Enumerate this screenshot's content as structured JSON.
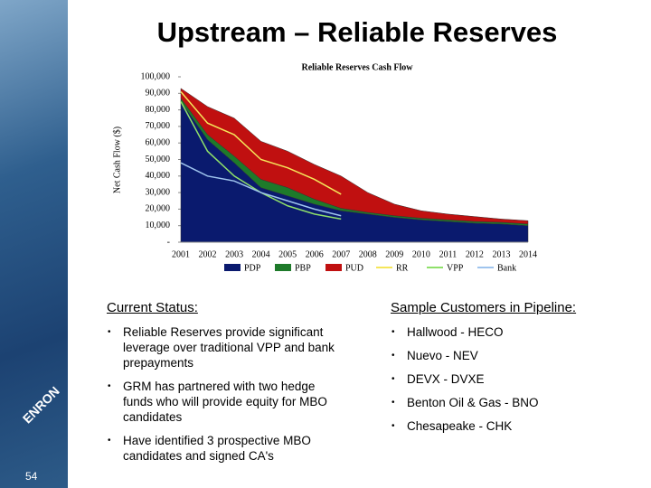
{
  "slide": {
    "title": "Upstream – Reliable Reserves",
    "page_number": "54",
    "logo": "ENRON"
  },
  "chart_data": {
    "type": "area",
    "title": "Reliable Reserves Cash Flow",
    "y_label": "Net Cash Flow ($)",
    "categories": [
      "2001",
      "2002",
      "2003",
      "2004",
      "2005",
      "2006",
      "2007",
      "2008",
      "2009",
      "2010",
      "2011",
      "2012",
      "2013",
      "2014"
    ],
    "ylim": [
      0,
      100000
    ],
    "yticks": [
      {
        "value": 0,
        "label": "-"
      },
      {
        "value": 10000,
        "label": "10,000"
      },
      {
        "value": 20000,
        "label": "20,000"
      },
      {
        "value": 30000,
        "label": "30,000"
      },
      {
        "value": 40000,
        "label": "40,000"
      },
      {
        "value": 50000,
        "label": "50,000"
      },
      {
        "value": 60000,
        "label": "60,000"
      },
      {
        "value": 70000,
        "label": "70,000"
      },
      {
        "value": 80000,
        "label": "80,000"
      },
      {
        "value": 90000,
        "label": "90,000"
      },
      {
        "value": 100000,
        "label": "100,000"
      }
    ],
    "series": [
      {
        "name": "PDP",
        "color": "#0a1a6e",
        "style": "area",
        "values": [
          85000,
          62000,
          48000,
          33000,
          28000,
          23000,
          19000,
          17000,
          15000,
          13500,
          12500,
          11500,
          11000,
          10000
        ]
      },
      {
        "name": "PBP",
        "color": "#1e7a2a",
        "style": "area",
        "values": [
          2000,
          3000,
          4000,
          5000,
          5000,
          3000,
          1500,
          1000,
          1000,
          1000,
          1000,
          1000,
          1000,
          1000
        ]
      },
      {
        "name": "PUD",
        "color": "#c01010",
        "style": "area",
        "values": [
          6000,
          17000,
          23000,
          23000,
          22000,
          21000,
          19500,
          12000,
          7000,
          4500,
          3500,
          3000,
          2000,
          2000
        ]
      },
      {
        "name": "RR",
        "color": "#f5e65a",
        "style": "line",
        "values": [
          91000,
          72000,
          65000,
          50000,
          45000,
          38000,
          29000,
          null,
          null,
          null,
          null,
          null,
          null,
          null
        ]
      },
      {
        "name": "VPP",
        "color": "#8fe06a",
        "style": "line",
        "values": [
          85000,
          55000,
          40000,
          30000,
          22000,
          17000,
          14000,
          null,
          null,
          null,
          null,
          null,
          null,
          null
        ]
      },
      {
        "name": "Bank",
        "color": "#9fc4ee",
        "style": "line",
        "values": [
          48000,
          40000,
          37000,
          30000,
          25000,
          20000,
          16000,
          null,
          null,
          null,
          null,
          null,
          null,
          null
        ]
      }
    ]
  },
  "left_column": {
    "heading": "Current Status:",
    "bullets": [
      "Reliable Reserves provide significant leverage over traditional VPP and bank prepayments",
      "GRM has partnered with two hedge funds who will provide equity for MBO candidates",
      "Have identified 3 prospective MBO candidates and signed CA's"
    ]
  },
  "right_column": {
    "heading": "Sample Customers in Pipeline:",
    "bullets": [
      "Hallwood - HECO",
      "Nuevo - NEV",
      "DEVX - DVXE",
      "Benton Oil & Gas - BNO",
      "Chesapeake - CHK"
    ]
  }
}
